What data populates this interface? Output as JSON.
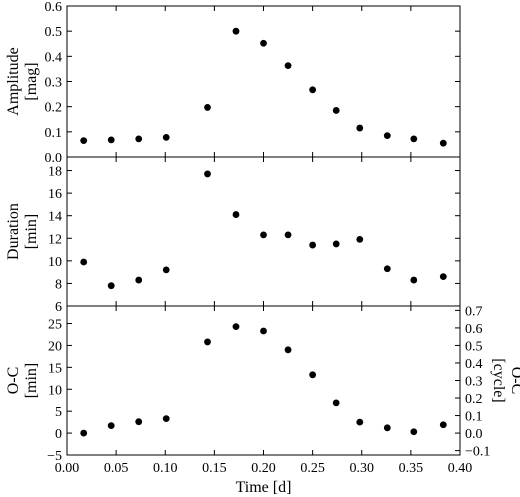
{
  "chart_data": [
    {
      "type": "scatter",
      "ylabel": [
        "Amplitude",
        "[mag]"
      ],
      "ylim": [
        0,
        0.6
      ],
      "yticks": [
        0,
        0.1,
        0.2,
        0.3,
        0.4,
        0.5,
        0.6
      ],
      "ytick_labels": [
        "0.0",
        "0.1",
        "0.2",
        "0.3",
        "0.4",
        "0.5",
        "0.6"
      ],
      "x": [
        0.017,
        0.045,
        0.073,
        0.101,
        0.143,
        0.172,
        0.2,
        0.225,
        0.25,
        0.274,
        0.298,
        0.326,
        0.353,
        0.383
      ],
      "y": [
        0.065,
        0.068,
        0.072,
        0.078,
        0.197,
        0.5,
        0.452,
        0.363,
        0.267,
        0.185,
        0.115,
        0.085,
        0.072,
        0.055
      ]
    },
    {
      "type": "scatter",
      "ylabel": [
        "Duration",
        "[min]"
      ],
      "ylim": [
        6,
        19.2
      ],
      "yticks": [
        6,
        8,
        10,
        12,
        14,
        16,
        18
      ],
      "ytick_labels": [
        "6",
        "8",
        "10",
        "12",
        "14",
        "16",
        "18"
      ],
      "x": [
        0.017,
        0.045,
        0.073,
        0.101,
        0.143,
        0.172,
        0.2,
        0.225,
        0.25,
        0.274,
        0.298,
        0.326,
        0.353,
        0.383
      ],
      "y": [
        9.9,
        7.8,
        8.3,
        9.2,
        17.7,
        14.1,
        12.3,
        12.3,
        11.4,
        11.5,
        11.9,
        9.3,
        8.3,
        8.6
      ]
    },
    {
      "type": "scatter",
      "ylabel": [
        "O-C",
        "[min]"
      ],
      "ylim": [
        -5,
        29
      ],
      "yticks": [
        -5,
        0,
        5,
        10,
        15,
        20,
        25
      ],
      "ytick_labels": [
        "−5",
        "0",
        "5",
        "10",
        "15",
        "20",
        "25"
      ],
      "y2label": [
        "O-C",
        "[cycle]"
      ],
      "y2ticks": [
        -0.1,
        0.0,
        0.1,
        0.2,
        0.3,
        0.4,
        0.5,
        0.6,
        0.7
      ],
      "y2tick_labels": [
        "−0.1",
        "0.0",
        "0.1",
        "0.2",
        "0.3",
        "0.4",
        "0.5",
        "0.6",
        "0.7"
      ],
      "x": [
        0.017,
        0.045,
        0.073,
        0.101,
        0.143,
        0.172,
        0.2,
        0.225,
        0.25,
        0.274,
        0.298,
        0.326,
        0.353,
        0.383
      ],
      "y": [
        0.0,
        1.7,
        2.6,
        3.3,
        20.8,
        24.3,
        23.3,
        19.0,
        13.3,
        6.9,
        2.5,
        1.2,
        0.3,
        1.9
      ]
    }
  ],
  "x_axis": {
    "xlabel": "Time [d]",
    "xlim": [
      0,
      0.4
    ],
    "xticks": [
      0,
      0.05,
      0.1,
      0.15,
      0.2,
      0.25,
      0.3,
      0.35,
      0.4
    ],
    "xtick_labels": [
      "0.00",
      "0.05",
      "0.10",
      "0.15",
      "0.20",
      "0.25",
      "0.30",
      "0.35",
      "0.40"
    ]
  }
}
